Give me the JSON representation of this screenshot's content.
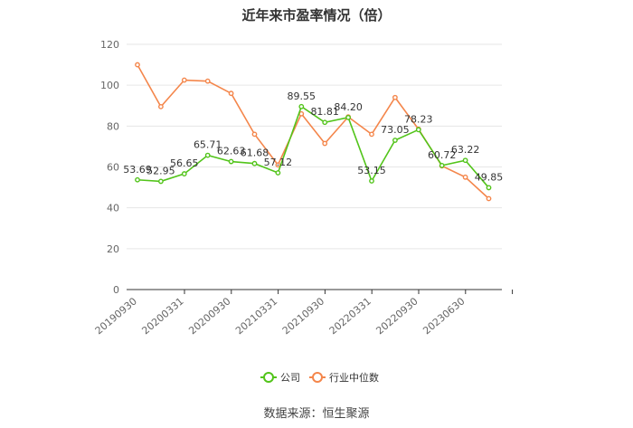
{
  "chart_data": {
    "type": "line",
    "title": "近年来市盈率情况（倍）",
    "ylim": [
      0,
      120
    ],
    "y_ticks": [
      0,
      20,
      40,
      60,
      80,
      100,
      120
    ],
    "grid": "horizontal",
    "x_tick_labels": [
      "20190930",
      "20200331",
      "20200930",
      "20210331",
      "20210930",
      "20220331",
      "20220930",
      "20230630"
    ],
    "legend_position": "bottom-center",
    "series": [
      {
        "name": "公司",
        "color": "#52c41a",
        "values": [
          53.69,
          52.95,
          56.65,
          65.71,
          62.63,
          61.68,
          57.12,
          89.55,
          81.81,
          84.2,
          53.15,
          73.05,
          78.23,
          60.72,
          63.22,
          49.85
        ],
        "labels": [
          "53.69",
          "52.95",
          "56.65",
          "65.71",
          "62.63",
          "61.68",
          "57.12",
          "89.55",
          "81.81",
          "84.20",
          "53.15",
          "73.05",
          "78.23",
          "60.72",
          "63.22",
          "49.85"
        ]
      },
      {
        "name": "行业中位数",
        "color": "#f4864b",
        "values": [
          110,
          89.5,
          102.5,
          102,
          96,
          76,
          61,
          86,
          71.5,
          84.5,
          76,
          94,
          78.5,
          60.5,
          55,
          44.5
        ]
      }
    ]
  },
  "footer": {
    "source": "数据来源：恒生聚源"
  }
}
